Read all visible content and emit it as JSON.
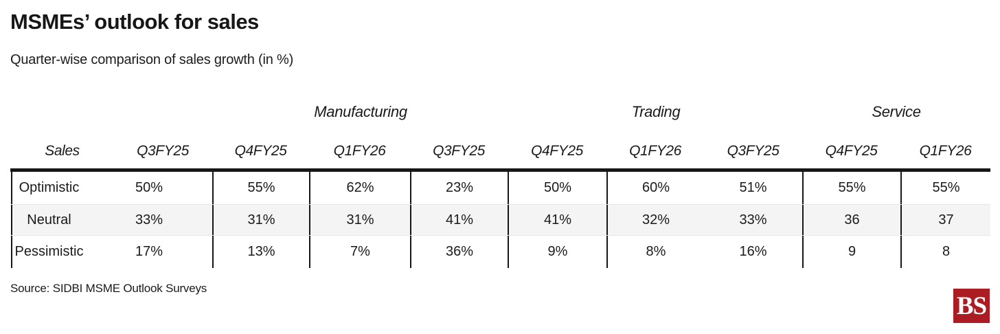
{
  "header": {
    "title": "MSMEs’ outlook for sales",
    "subtitle": "Quarter-wise comparison of sales growth (in %)"
  },
  "table": {
    "sales_header": "Sales",
    "group_headers": [
      "Manufacturing",
      "Trading",
      "Service"
    ],
    "column_headers": [
      "Q3FY25",
      "Q4FY25",
      "Q1FY26",
      "Q3FY25",
      "Q4FY25",
      "Q1FY26",
      "Q3FY25",
      "Q4FY25",
      "Q1FY26"
    ],
    "rows": [
      {
        "label": "Optimistic",
        "values": [
          "50%",
          "55%",
          "62%",
          "23%",
          "50%",
          "60%",
          "51%",
          "55%",
          "55%"
        ]
      },
      {
        "label": "Neutral",
        "values": [
          "33%",
          "31%",
          "31%",
          "41%",
          "41%",
          "32%",
          "33%",
          "36",
          "37"
        ]
      },
      {
        "label": "Pessimistic",
        "values": [
          "17%",
          "13%",
          "7%",
          "36%",
          "9%",
          "8%",
          "16%",
          "9",
          "8"
        ]
      }
    ]
  },
  "footer": {
    "source": "Source: SIDBI MSME Outlook Surveys",
    "logo_text": "BS"
  },
  "colors": {
    "logo_red": "#ac1d23",
    "alt_row_bg": "#f4f4f4",
    "rule_dark": "#161616"
  },
  "chart_data": {
    "type": "table",
    "title": "MSMEs’ outlook for sales",
    "subtitle": "Quarter-wise comparison of sales growth (in %)",
    "unit": "percent",
    "row_categories": [
      "Optimistic",
      "Neutral",
      "Pessimistic"
    ],
    "sectors": [
      {
        "name": "Manufacturing",
        "quarters": [
          "Q3FY25",
          "Q4FY25",
          "Q1FY26"
        ],
        "optimistic": [
          50,
          55,
          62
        ],
        "neutral": [
          33,
          31,
          31
        ],
        "pessimistic": [
          17,
          13,
          7
        ]
      },
      {
        "name": "Trading",
        "quarters": [
          "Q3FY25",
          "Q4FY25",
          "Q1FY26"
        ],
        "optimistic": [
          23,
          50,
          60
        ],
        "neutral": [
          41,
          41,
          32
        ],
        "pessimistic": [
          36,
          9,
          8
        ]
      },
      {
        "name": "Service",
        "quarters": [
          "Q3FY25",
          "Q4FY25",
          "Q1FY26"
        ],
        "optimistic": [
          51,
          55,
          55
        ],
        "neutral": [
          33,
          36,
          37
        ],
        "pessimistic": [
          16,
          9,
          8
        ]
      }
    ],
    "source": "Source: SIDBI MSME Outlook Surveys"
  }
}
